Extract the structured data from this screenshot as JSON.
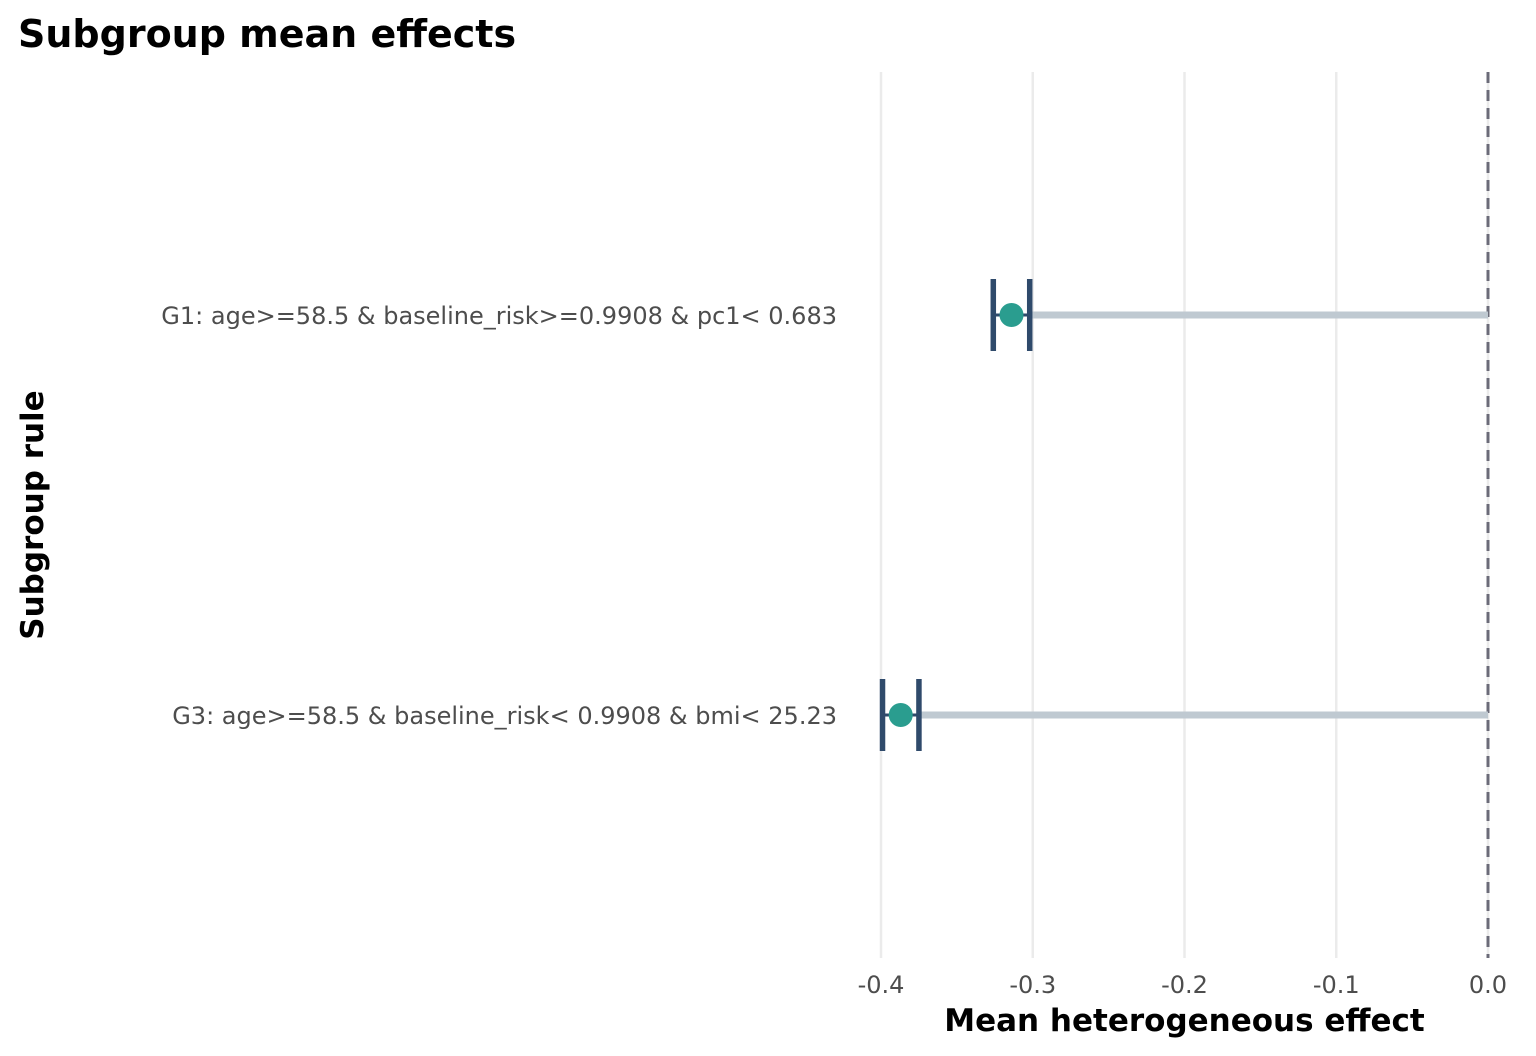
{
  "chart_data": {
    "type": "dot-errorbar",
    "title": "Subgroup mean effects",
    "xlabel": "Mean heterogeneous effect",
    "ylabel": "Subgroup rule",
    "xlim": [
      -0.4,
      0.0
    ],
    "xticks": [
      -0.4,
      -0.3,
      -0.2,
      -0.1,
      0.0
    ],
    "xtick_labels": [
      "-0.4",
      "-0.3",
      "-0.2",
      "-0.1",
      "0.0"
    ],
    "reference_line": 0.0,
    "grid": "vertical",
    "categories": [
      "G1: age>=58.5 & baseline_risk>=0.9908 & pc1< 0.683",
      "G3: age>=58.5 & baseline_risk< 0.9908 & bmi< 25.23"
    ],
    "series": [
      {
        "name": "mean",
        "values": [
          -0.314,
          -0.387
        ]
      },
      {
        "name": "lower",
        "values": [
          -0.326,
          -0.399
        ]
      },
      {
        "name": "upper",
        "values": [
          -0.302,
          -0.375
        ]
      }
    ],
    "colors": {
      "point": "#2a9d8f",
      "errorbar": "#2f4a6b",
      "segment": "#bfc9d1",
      "grid": "#ebebeb",
      "refline": "#6b6b78"
    }
  }
}
